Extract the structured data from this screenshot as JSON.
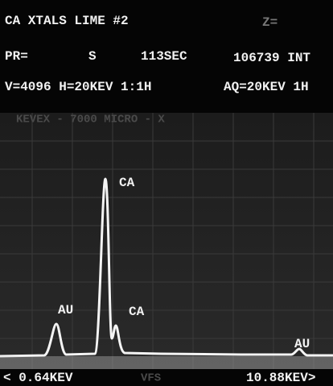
{
  "header": {
    "line1": {
      "title": "CA XTALS LIME #2",
      "z": "Z="
    },
    "line2": {
      "preset": "PR=",
      "mode": "S",
      "time": "113SEC",
      "integral": "106739 INT"
    },
    "line3": {
      "scale": "V=4096 H=20KEV 1:1H",
      "acquire": "AQ=20KEV 1H"
    },
    "instrument": "KEVEX - 7000  MICRO - X"
  },
  "peaks": [
    {
      "label": "CA"
    },
    {
      "label": "AU"
    },
    {
      "label": "CA"
    },
    {
      "label": "AU"
    }
  ],
  "footer": {
    "left": "< 0.64KEV",
    "middle": "VFS",
    "right": "10.88KEV>"
  }
}
